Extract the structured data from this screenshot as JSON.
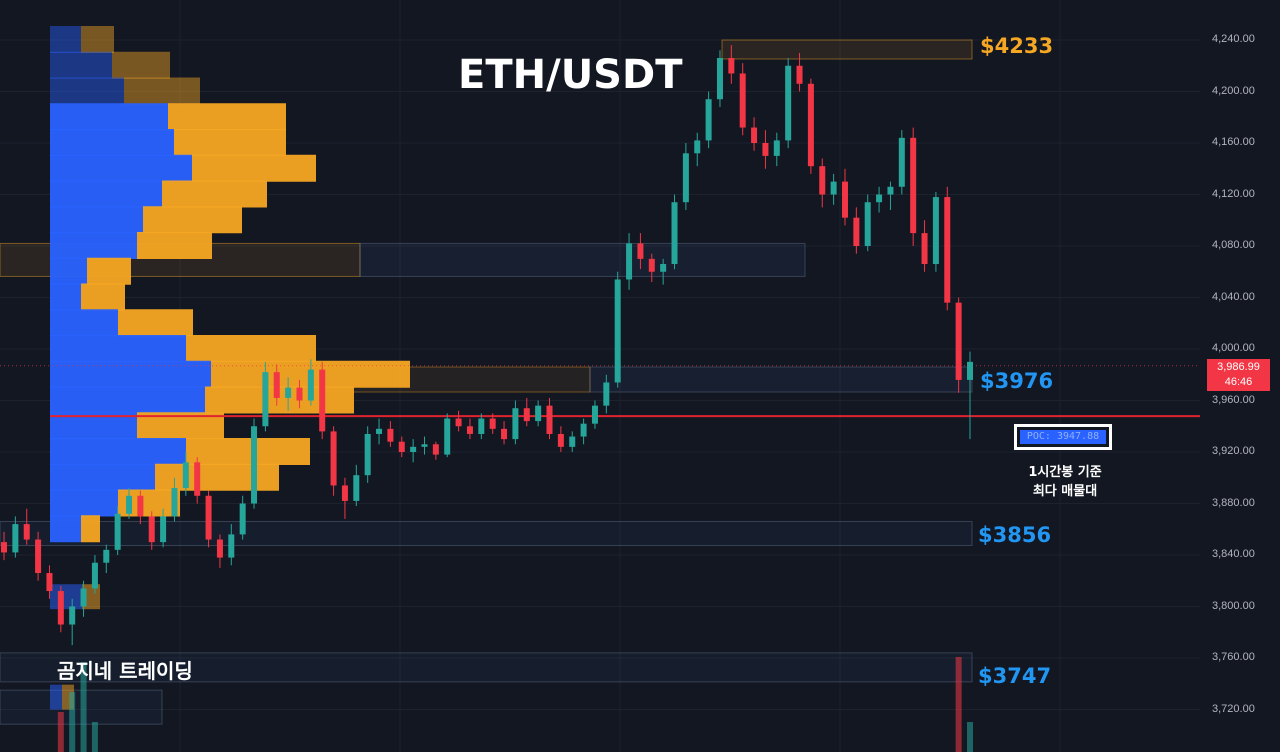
{
  "title": "ETH/USDT",
  "watermark": "곰지네 트레이딩",
  "levels": {
    "top": "$4233",
    "mid": "$3976",
    "low1": "$3856",
    "low2": "$3747"
  },
  "poc_label": "POC: 3947.88",
  "annotation": {
    "line1": "1시간봉 기준",
    "line2": "최다 매물대"
  },
  "price_badge": {
    "price": "3,986.99",
    "countdown": "46:46"
  },
  "colors": {
    "background": "#131722",
    "up": "#26a69a",
    "down": "#f23645",
    "volume_profile_buy": "#2962ff",
    "volume_profile_sell": "#f5a623",
    "level_gold": "#f5a623",
    "level_blue": "#2196f3"
  },
  "chart_data": {
    "type": "candlestick",
    "title": "ETH/USDT",
    "timeframe": "1시간봉",
    "yaxis": {
      "ticks": [
        3720,
        3760,
        3800,
        3840,
        3880,
        3920,
        3960,
        4000,
        4040,
        4080,
        4120,
        4160,
        4200,
        4240
      ],
      "tick_labels": [
        "3,720.00",
        "3,760.00",
        "3,800.00",
        "3,840.00",
        "3,880.00",
        "3,920.00",
        "3,960.00",
        "4,000.00",
        "4,040.00",
        "4,080.00",
        "4,120.00",
        "4,160.00",
        "4,200.00",
        "4,240.00"
      ],
      "range": [
        3705,
        4260
      ]
    },
    "current_price": 3986.99,
    "poc": 3947.88,
    "horizontal_levels": [
      4233,
      3976,
      3856,
      3747
    ],
    "candles": [
      [
        3850,
        3858,
        3836,
        3842
      ],
      [
        3842,
        3870,
        3838,
        3864
      ],
      [
        3864,
        3876,
        3848,
        3852
      ],
      [
        3852,
        3858,
        3820,
        3826
      ],
      [
        3826,
        3832,
        3806,
        3812
      ],
      [
        3812,
        3816,
        3780,
        3786
      ],
      [
        3786,
        3806,
        3770,
        3800
      ],
      [
        3800,
        3820,
        3792,
        3814
      ],
      [
        3814,
        3840,
        3810,
        3834
      ],
      [
        3834,
        3848,
        3826,
        3844
      ],
      [
        3844,
        3878,
        3840,
        3872
      ],
      [
        3872,
        3892,
        3868,
        3886
      ],
      [
        3886,
        3890,
        3864,
        3870
      ],
      [
        3870,
        3874,
        3844,
        3850
      ],
      [
        3850,
        3876,
        3846,
        3870
      ],
      [
        3870,
        3900,
        3866,
        3892
      ],
      [
        3892,
        3920,
        3886,
        3912
      ],
      [
        3912,
        3916,
        3880,
        3886
      ],
      [
        3886,
        3890,
        3846,
        3852
      ],
      [
        3852,
        3856,
        3830,
        3838
      ],
      [
        3838,
        3864,
        3832,
        3856
      ],
      [
        3856,
        3886,
        3852,
        3880
      ],
      [
        3880,
        3946,
        3876,
        3940
      ],
      [
        3940,
        3990,
        3936,
        3982
      ],
      [
        3982,
        3988,
        3956,
        3962
      ],
      [
        3962,
        3978,
        3952,
        3970
      ],
      [
        3970,
        3976,
        3954,
        3960
      ],
      [
        3960,
        3992,
        3956,
        3984
      ],
      [
        3984,
        3990,
        3930,
        3936
      ],
      [
        3936,
        3940,
        3886,
        3894
      ],
      [
        3894,
        3900,
        3868,
        3882
      ],
      [
        3882,
        3910,
        3878,
        3902
      ],
      [
        3902,
        3940,
        3896,
        3934
      ],
      [
        3934,
        3946,
        3926,
        3938
      ],
      [
        3938,
        3944,
        3924,
        3928
      ],
      [
        3928,
        3932,
        3916,
        3920
      ],
      [
        3920,
        3930,
        3912,
        3924
      ],
      [
        3924,
        3932,
        3918,
        3926
      ],
      [
        3926,
        3928,
        3914,
        3918
      ],
      [
        3918,
        3950,
        3916,
        3946
      ],
      [
        3946,
        3952,
        3936,
        3940
      ],
      [
        3940,
        3946,
        3930,
        3934
      ],
      [
        3934,
        3950,
        3930,
        3946
      ],
      [
        3946,
        3950,
        3934,
        3938
      ],
      [
        3938,
        3944,
        3926,
        3930
      ],
      [
        3930,
        3960,
        3926,
        3954
      ],
      [
        3954,
        3962,
        3940,
        3944
      ],
      [
        3944,
        3960,
        3940,
        3956
      ],
      [
        3956,
        3962,
        3930,
        3934
      ],
      [
        3934,
        3940,
        3920,
        3924
      ],
      [
        3924,
        3936,
        3920,
        3932
      ],
      [
        3932,
        3946,
        3926,
        3942
      ],
      [
        3942,
        3960,
        3938,
        3956
      ],
      [
        3956,
        3980,
        3950,
        3974
      ],
      [
        3974,
        4060,
        3970,
        4054
      ],
      [
        4054,
        4090,
        4046,
        4082
      ],
      [
        4082,
        4090,
        4062,
        4070
      ],
      [
        4070,
        4074,
        4052,
        4060
      ],
      [
        4060,
        4070,
        4050,
        4066
      ],
      [
        4066,
        4120,
        4062,
        4114
      ],
      [
        4114,
        4160,
        4108,
        4152
      ],
      [
        4152,
        4168,
        4142,
        4162
      ],
      [
        4162,
        4200,
        4156,
        4194
      ],
      [
        4194,
        4232,
        4188,
        4226
      ],
      [
        4226,
        4236,
        4206,
        4214
      ],
      [
        4214,
        4222,
        4166,
        4172
      ],
      [
        4172,
        4180,
        4154,
        4160
      ],
      [
        4160,
        4170,
        4140,
        4150
      ],
      [
        4150,
        4168,
        4142,
        4162
      ],
      [
        4162,
        4226,
        4156,
        4220
      ],
      [
        4220,
        4230,
        4200,
        4206
      ],
      [
        4206,
        4210,
        4136,
        4142
      ],
      [
        4142,
        4148,
        4110,
        4120
      ],
      [
        4120,
        4136,
        4112,
        4130
      ],
      [
        4130,
        4140,
        4096,
        4102
      ],
      [
        4102,
        4110,
        4074,
        4080
      ],
      [
        4080,
        4120,
        4076,
        4114
      ],
      [
        4114,
        4126,
        4106,
        4120
      ],
      [
        4120,
        4130,
        4108,
        4126
      ],
      [
        4126,
        4170,
        4120,
        4164
      ],
      [
        4164,
        4172,
        4080,
        4090
      ],
      [
        4090,
        4100,
        4060,
        4066
      ],
      [
        4066,
        4122,
        4060,
        4118
      ],
      [
        4118,
        4126,
        4030,
        4036
      ],
      [
        4036,
        4040,
        3966,
        3976
      ],
      [
        3976,
        3998,
        3930,
        3990
      ]
    ],
    "volume_profile": [
      {
        "price": 4240,
        "buy": 31,
        "sell": 33
      },
      {
        "price": 4220,
        "buy": 62,
        "sell": 58
      },
      {
        "price": 4200,
        "buy": 74,
        "sell": 76
      },
      {
        "price": 4180,
        "buy": 118,
        "sell": 118
      },
      {
        "price": 4160,
        "buy": 124,
        "sell": 112
      },
      {
        "price": 4140,
        "buy": 142,
        "sell": 124
      },
      {
        "price": 4120,
        "buy": 112,
        "sell": 105
      },
      {
        "price": 4100,
        "buy": 93,
        "sell": 99
      },
      {
        "price": 4080,
        "buy": 87,
        "sell": 75
      },
      {
        "price": 4060,
        "buy": 37,
        "sell": 44
      },
      {
        "price": 4040,
        "buy": 31,
        "sell": 44
      },
      {
        "price": 4020,
        "buy": 68,
        "sell": 75
      },
      {
        "price": 4000,
        "buy": 136,
        "sell": 130
      },
      {
        "price": 3980,
        "buy": 161,
        "sell": 199
      },
      {
        "price": 3960,
        "buy": 155,
        "sell": 149
      },
      {
        "price": 3940,
        "buy": 87,
        "sell": 87
      },
      {
        "price": 3920,
        "buy": 136,
        "sell": 124
      },
      {
        "price": 3900,
        "buy": 105,
        "sell": 124
      },
      {
        "price": 3880,
        "buy": 68,
        "sell": 62
      },
      {
        "price": 3860,
        "buy": 31,
        "sell": 19
      }
    ],
    "volume_bars": [
      0,
      0,
      0,
      0,
      0,
      40,
      60,
      90,
      30,
      0,
      0,
      0,
      0,
      0,
      0,
      0,
      0,
      0,
      0,
      0,
      0,
      0,
      0,
      0,
      0,
      0,
      0,
      0,
      0,
      0,
      0,
      0,
      0,
      0,
      0,
      0,
      0,
      0,
      0,
      0,
      0,
      0,
      0,
      0,
      0,
      0,
      0,
      0,
      0,
      0,
      0,
      0,
      0,
      0,
      0,
      0,
      0,
      0,
      0,
      0,
      0,
      0,
      0,
      0,
      0,
      0,
      0,
      0,
      0,
      0,
      0,
      0,
      0,
      0,
      0,
      0,
      0,
      0,
      0,
      0,
      0,
      0,
      0,
      0,
      95,
      30
    ]
  }
}
